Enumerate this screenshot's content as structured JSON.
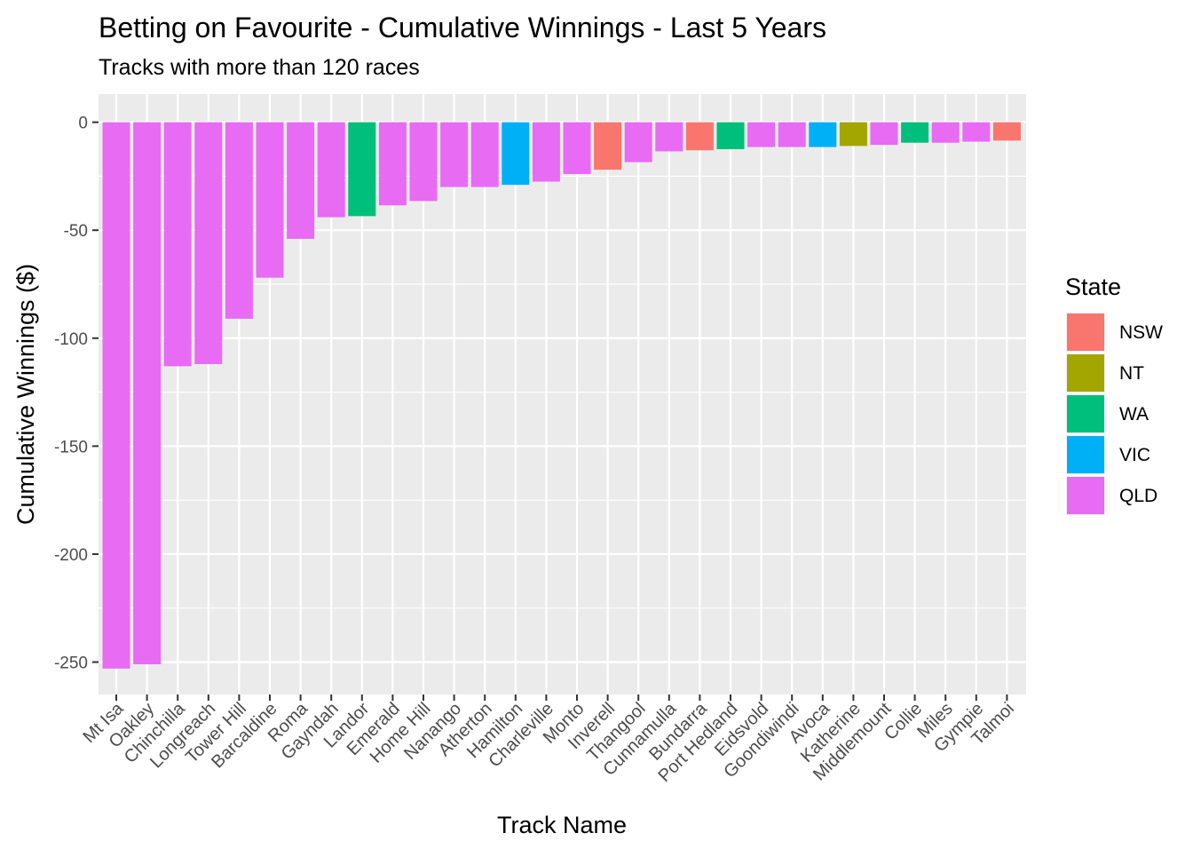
{
  "chart_data": {
    "type": "bar",
    "title": "Betting on Favourite - Cumulative Winnings - Last 5 Years",
    "subtitle": "Tracks with more than 120 races",
    "xlabel": "Track Name",
    "ylabel": "Cumulative Winnings ($)",
    "ylim": [
      -265,
      13
    ],
    "yticks": [
      0,
      -50,
      -100,
      -150,
      -200,
      -250
    ],
    "grid": true,
    "legend": {
      "title": "State",
      "position": "right",
      "entries": [
        {
          "label": "NSW",
          "color": "#F8766D"
        },
        {
          "label": "NT",
          "color": "#A3A500"
        },
        {
          "label": "WA",
          "color": "#00BF7D"
        },
        {
          "label": "VIC",
          "color": "#00B0F6"
        },
        {
          "label": "QLD",
          "color": "#E76BF3"
        }
      ]
    },
    "categories": [
      "Mt Isa",
      "Oakley",
      "Chinchilla",
      "Longreach",
      "Tower Hill",
      "Barcaldine",
      "Roma",
      "Gayndah",
      "Landor",
      "Emerald",
      "Home Hill",
      "Nanango",
      "Atherton",
      "Hamilton",
      "Charleville",
      "Monto",
      "Inverell",
      "Thangool",
      "Cunnamulla",
      "Bundarra",
      "Port Hedland",
      "Eidsvold",
      "Goondiwindi",
      "Avoca",
      "Katherine",
      "Middlemount",
      "Collie",
      "Miles",
      "Gympie",
      "Talmoi"
    ],
    "values": [
      -253,
      -251,
      -113,
      -112,
      -91,
      -72,
      -54,
      -44,
      -43.5,
      -38.5,
      -36.5,
      -30,
      -30,
      -29,
      -27.5,
      -24,
      -22,
      -18.5,
      -13.5,
      -13,
      -12.5,
      -11.5,
      -11.5,
      -11.5,
      -11,
      -10.5,
      -9.5,
      -9.5,
      -9,
      -8.5
    ],
    "states": [
      "QLD",
      "QLD",
      "QLD",
      "QLD",
      "QLD",
      "QLD",
      "QLD",
      "QLD",
      "WA",
      "QLD",
      "QLD",
      "QLD",
      "QLD",
      "VIC",
      "QLD",
      "QLD",
      "NSW",
      "QLD",
      "QLD",
      "NSW",
      "WA",
      "QLD",
      "QLD",
      "VIC",
      "NT",
      "QLD",
      "WA",
      "QLD",
      "QLD",
      "NSW"
    ]
  }
}
